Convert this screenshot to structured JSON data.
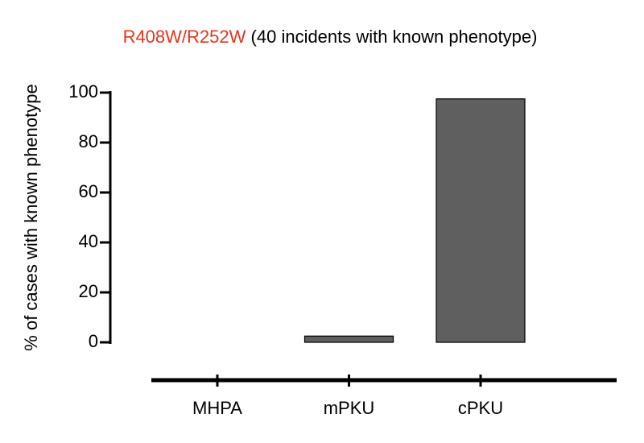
{
  "chart_data": {
    "type": "bar",
    "title_parts": [
      "R408W/R252W",
      "(40 incidents with known phenotype)"
    ],
    "title_colors": [
      "#e8341c",
      "#000000"
    ],
    "y_label": "% of cases with known phenotype",
    "categories": [
      "MHPA",
      "mPKU",
      "cPKU"
    ],
    "values": [
      0,
      2.5,
      97.5
    ],
    "color": "#5f5f5f",
    "ylim": [
      0,
      100
    ],
    "yticks": [
      0,
      20,
      40,
      60,
      80,
      100
    ],
    "grid": false
  }
}
